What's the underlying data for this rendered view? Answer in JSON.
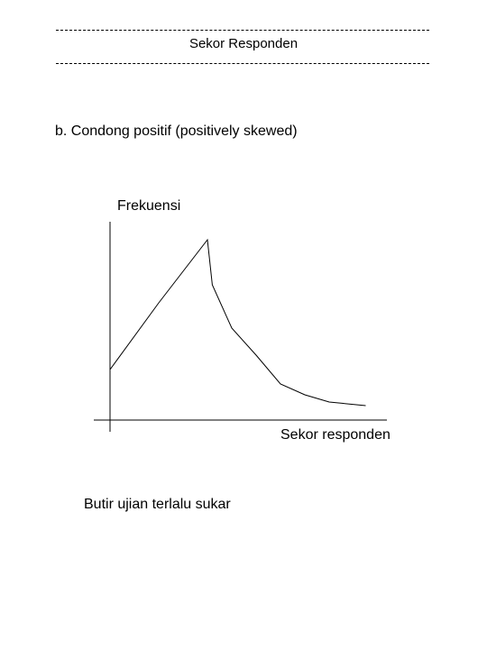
{
  "header": {
    "title": "Sekor Responden"
  },
  "section": {
    "heading": "b. Condong positif (positively skewed)"
  },
  "chart_data": {
    "type": "line",
    "title": "",
    "xlabel": "Sekor responden",
    "ylabel": "Frekuensi",
    "grid": false,
    "legend": "none",
    "x": [
      0,
      2,
      4,
      4.2,
      5,
      6,
      7,
      8,
      9,
      10.5
    ],
    "y": [
      2.8,
      6.5,
      10,
      7.5,
      5.1,
      3.6,
      2,
      1.4,
      1,
      0.8
    ],
    "xlim": [
      0,
      11
    ],
    "ylim": [
      -0.5,
      11
    ]
  },
  "caption": {
    "text": "Butir ujian terlalu sukar"
  }
}
